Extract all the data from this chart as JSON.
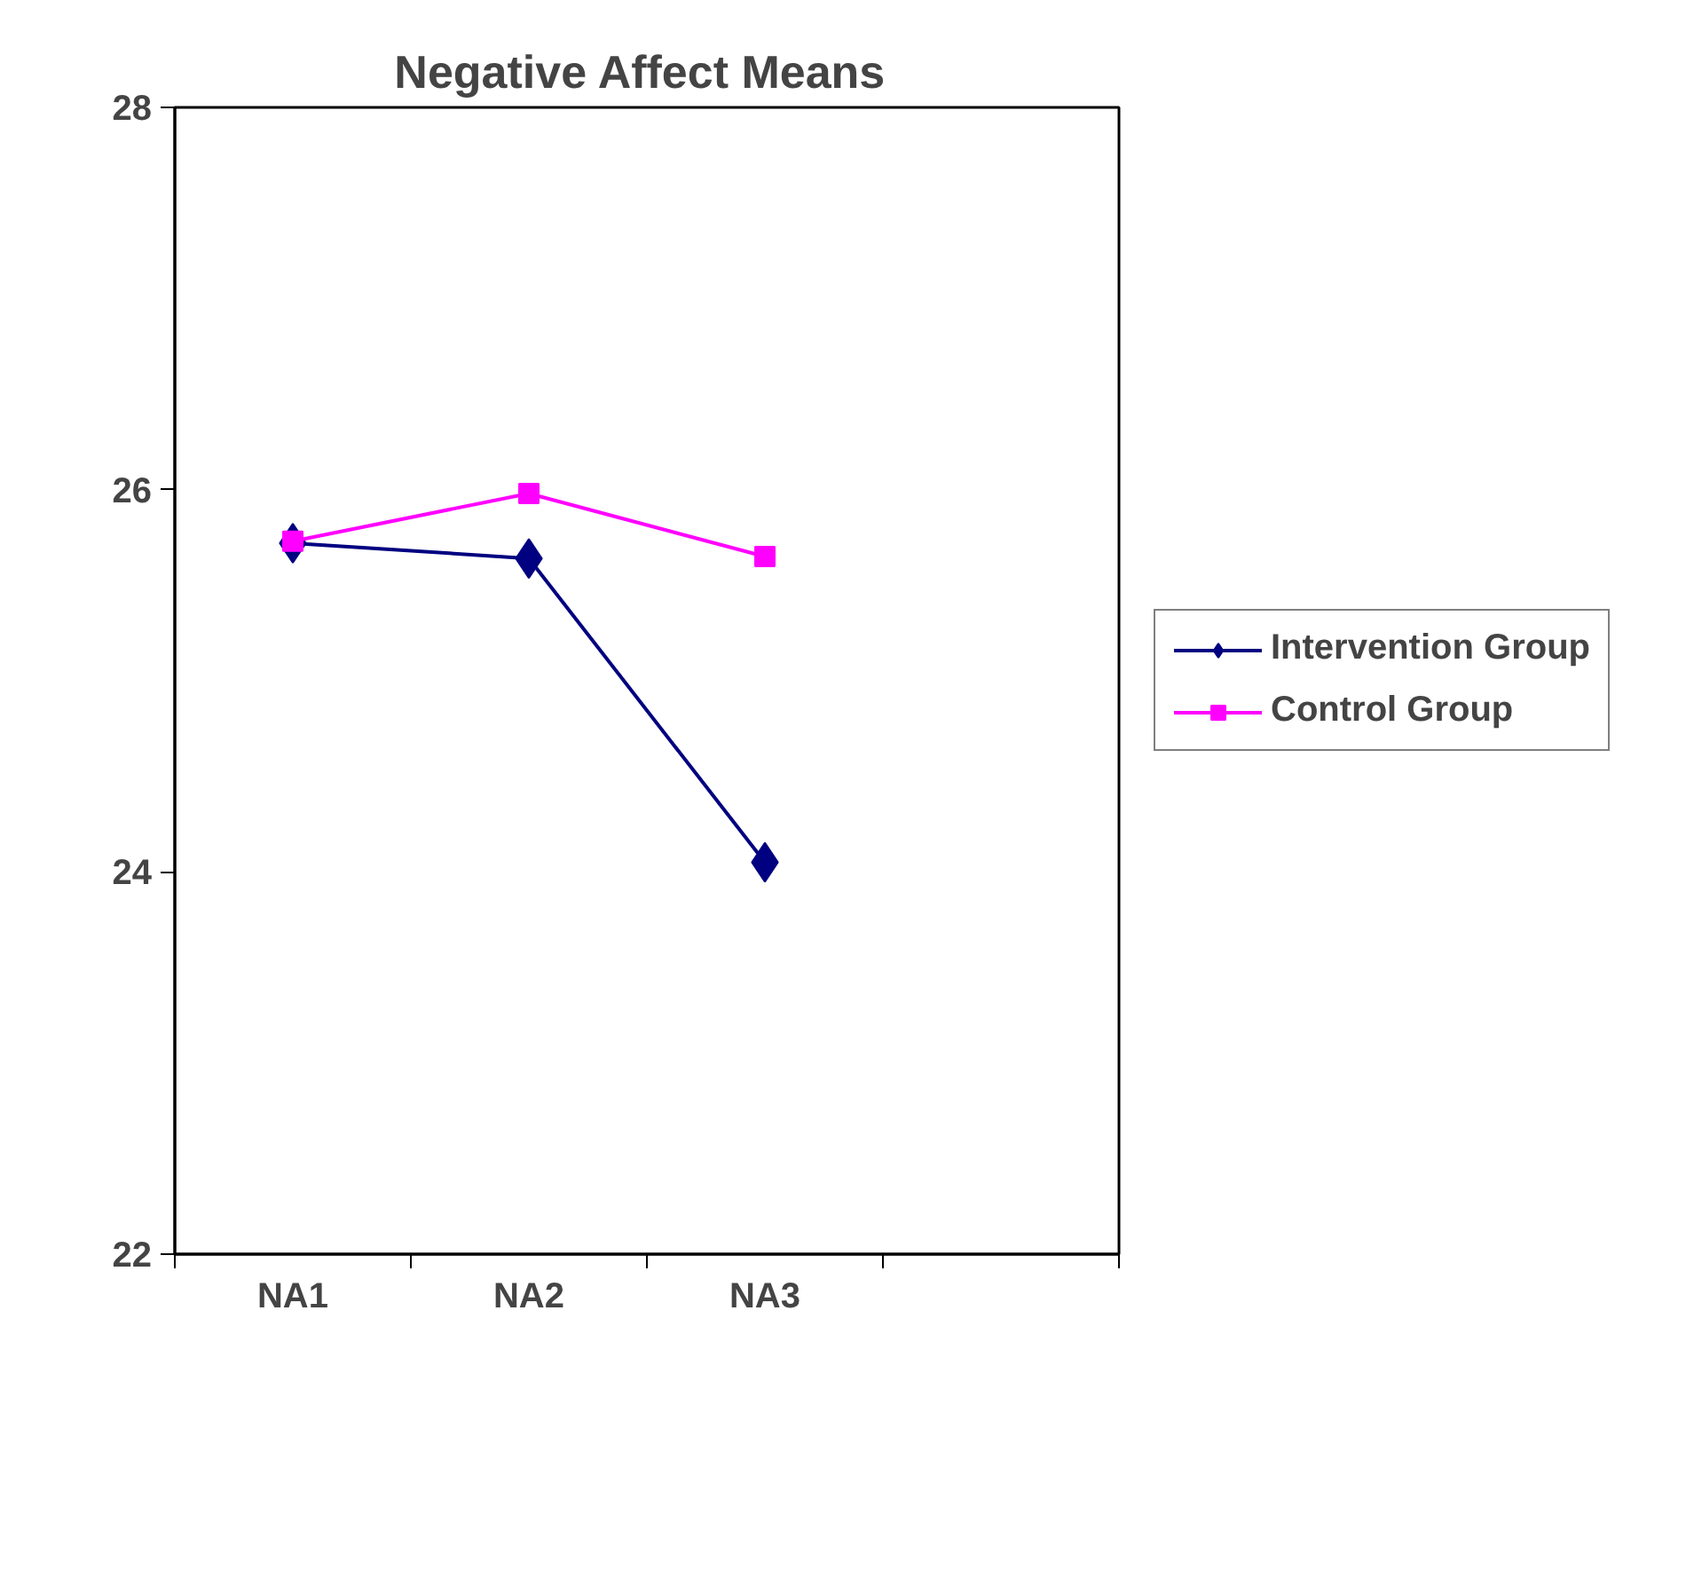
{
  "chart_data": {
    "type": "line",
    "title": "Negative Affect  Means",
    "categories": [
      "NA1",
      "NA2",
      "NA3",
      null
    ],
    "series": [
      {
        "name": "Intervention Group",
        "color": "#000080",
        "marker": "diamond",
        "values": [
          25.72,
          25.64,
          24.05,
          null
        ]
      },
      {
        "name": "Control Group",
        "color": "#ff00ff",
        "marker": "square",
        "values": [
          25.73,
          25.98,
          25.65,
          null
        ]
      }
    ],
    "ylim": [
      22,
      28
    ],
    "yticks": [
      22,
      24,
      26,
      28
    ],
    "grid": false,
    "legend": "right"
  }
}
